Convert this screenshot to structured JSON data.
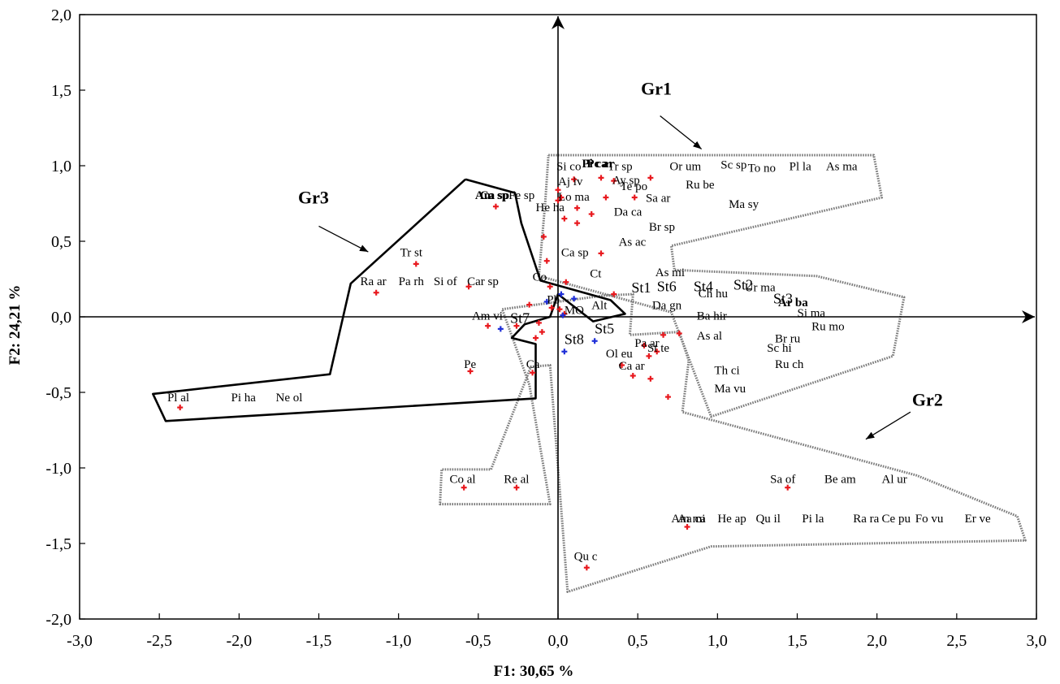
{
  "chart_data": {
    "type": "scatter",
    "xlabel": "F1: 30,65 %",
    "ylabel": "F2: 24,21 %",
    "xlim": [
      -3.0,
      3.0
    ],
    "ylim": [
      -2.0,
      2.0
    ],
    "x_ticks": [
      "-3,0",
      "-2,5",
      "-2,0",
      "-1,5",
      "-1,0",
      "-0,5",
      "0,0",
      "0,5",
      "1,0",
      "1,5",
      "2,0",
      "2,5",
      "3,0"
    ],
    "y_ticks": [
      "2,0",
      "1,5",
      "1,0",
      "0,5",
      "0,0",
      "-0,5",
      "-1,0",
      "-1,5",
      "-2,0"
    ],
    "grid": false,
    "colors": {
      "species_marker": "#e8191e",
      "station_marker": "#1f2fd8",
      "axes": "#000000",
      "group_outline": "#7a7a7a",
      "gr3_outline": "#000000"
    },
    "groups": [
      {
        "name": "Gr1",
        "outline": "dotted-gray",
        "polygon": [
          [
            -0.06,
            1.07
          ],
          [
            1.98,
            1.07
          ],
          [
            2.03,
            0.79
          ],
          [
            0.71,
            0.47
          ],
          [
            0.73,
            0.31
          ],
          [
            1.62,
            0.27
          ],
          [
            2.17,
            0.13
          ],
          [
            2.1,
            -0.26
          ],
          [
            0.96,
            -0.66
          ],
          [
            0.71,
            0.03
          ],
          [
            -0.12,
            0.27
          ],
          [
            -0.08,
            0.76
          ],
          [
            -0.06,
            1.07
          ]
        ]
      },
      {
        "name": "Gr2",
        "outline": "dotted-gray",
        "polygon": [
          [
            -0.35,
            0.05
          ],
          [
            0.28,
            0.14
          ],
          [
            0.47,
            0.15
          ],
          [
            0.45,
            -0.12
          ],
          [
            0.76,
            -0.1
          ],
          [
            0.82,
            -0.29
          ],
          [
            0.78,
            -0.63
          ],
          [
            2.25,
            -1.05
          ],
          [
            2.88,
            -1.32
          ],
          [
            2.93,
            -1.48
          ],
          [
            0.96,
            -1.52
          ],
          [
            0.06,
            -1.82
          ],
          [
            -0.05,
            -0.32
          ],
          [
            -0.17,
            -0.33
          ],
          [
            -0.42,
            -1.01
          ],
          [
            -0.73,
            -1.01
          ],
          [
            -0.74,
            -1.24
          ],
          [
            -0.05,
            -1.24
          ],
          [
            -0.18,
            -0.45
          ],
          [
            -0.35,
            0.05
          ]
        ]
      },
      {
        "name": "Gr3",
        "outline": "solid-black",
        "polygon": [
          [
            -0.58,
            0.91
          ],
          [
            -0.27,
            0.82
          ],
          [
            -0.23,
            0.62
          ],
          [
            -0.11,
            0.24
          ],
          [
            0.33,
            0.11
          ],
          [
            0.42,
            0.02
          ],
          [
            0.22,
            -0.03
          ],
          [
            0.0,
            0.15
          ],
          [
            -0.05,
            0.0
          ],
          [
            -0.21,
            -0.05
          ],
          [
            -0.29,
            -0.14
          ],
          [
            -0.14,
            -0.18
          ],
          [
            -0.14,
            -0.54
          ],
          [
            -2.46,
            -0.69
          ],
          [
            -2.54,
            -0.51
          ],
          [
            -1.43,
            -0.38
          ],
          [
            -1.3,
            0.22
          ],
          [
            -0.58,
            0.91
          ]
        ]
      }
    ],
    "group_arrows": [
      {
        "label": "Gr1",
        "text_at": [
          0.52,
          1.47
        ],
        "arrow": [
          [
            0.64,
            1.33
          ],
          [
            0.9,
            1.11
          ]
        ]
      },
      {
        "label": "Gr3",
        "text_at": [
          -1.63,
          0.75
        ],
        "arrow": [
          [
            -1.5,
            0.6
          ],
          [
            -1.19,
            0.43
          ]
        ]
      },
      {
        "label": "Gr2",
        "text_at": [
          2.22,
          -0.59
        ],
        "arrow": [
          [
            2.21,
            -0.63
          ],
          [
            1.93,
            -0.81
          ]
        ]
      }
    ],
    "species_points": [
      {
        "x": 0.58,
        "y": 0.92
      },
      {
        "x": 0.48,
        "y": 0.79
      },
      {
        "x": 0.27,
        "y": 0.92
      },
      {
        "x": 0.35,
        "y": 0.9
      },
      {
        "x": 0.1,
        "y": 0.91
      },
      {
        "x": 0.0,
        "y": 0.84
      },
      {
        "x": 0.3,
        "y": 0.79
      },
      {
        "x": 0.21,
        "y": 0.68
      },
      {
        "x": 0.02,
        "y": 0.79
      },
      {
        "x": 0.12,
        "y": 0.72
      },
      {
        "x": 0.12,
        "y": 0.62
      },
      {
        "x": 0.04,
        "y": 0.65
      },
      {
        "x": -0.39,
        "y": 0.73
      },
      {
        "x": 0.0,
        "y": 0.77
      },
      {
        "x": -0.09,
        "y": 0.53
      },
      {
        "x": 0.27,
        "y": 0.42
      },
      {
        "x": -0.07,
        "y": 0.37
      },
      {
        "x": -0.89,
        "y": 0.35
      },
      {
        "x": -1.14,
        "y": 0.16
      },
      {
        "x": -0.56,
        "y": 0.2
      },
      {
        "x": 0.05,
        "y": 0.23
      },
      {
        "x": -0.05,
        "y": 0.2
      },
      {
        "x": 0.35,
        "y": 0.15
      },
      {
        "x": -0.18,
        "y": 0.08
      },
      {
        "x": 0.01,
        "y": 0.05
      },
      {
        "x": -0.04,
        "y": 0.06
      },
      {
        "x": 0.04,
        "y": 0.02
      },
      {
        "x": -0.44,
        "y": -0.06
      },
      {
        "x": -0.26,
        "y": -0.06
      },
      {
        "x": -0.12,
        "y": -0.04
      },
      {
        "x": -0.1,
        "y": -0.1
      },
      {
        "x": -0.14,
        "y": -0.14
      },
      {
        "x": -0.55,
        "y": -0.36
      },
      {
        "x": -0.16,
        "y": -0.37
      },
      {
        "x": 0.66,
        "y": -0.12
      },
      {
        "x": 0.76,
        "y": -0.11
      },
      {
        "x": 0.54,
        "y": -0.19
      },
      {
        "x": 0.62,
        "y": -0.23
      },
      {
        "x": 0.57,
        "y": -0.26
      },
      {
        "x": 0.4,
        "y": -0.32
      },
      {
        "x": 0.47,
        "y": -0.39
      },
      {
        "x": 0.58,
        "y": -0.41
      },
      {
        "x": 0.69,
        "y": -0.53
      },
      {
        "x": -2.37,
        "y": -0.6
      },
      {
        "x": -0.59,
        "y": -1.13
      },
      {
        "x": -0.26,
        "y": -1.13
      },
      {
        "x": 1.44,
        "y": -1.13
      },
      {
        "x": 0.81,
        "y": -1.39
      },
      {
        "x": 0.18,
        "y": -1.66
      }
    ],
    "station_points": [
      {
        "x": 0.02,
        "y": 0.15
      },
      {
        "x": -0.07,
        "y": 0.1
      },
      {
        "x": 0.1,
        "y": 0.12
      },
      {
        "x": 0.03,
        "y": 0.01
      },
      {
        "x": -0.36,
        "y": -0.08
      },
      {
        "x": 0.23,
        "y": -0.16
      },
      {
        "x": 0.04,
        "y": -0.23
      }
    ],
    "species_labels": [
      {
        "text": "Si co",
        "x": -0.01,
        "y": 0.97
      },
      {
        "text": "Pi ca",
        "x": 0.15,
        "y": 0.99,
        "bold": true
      },
      {
        "text": "Pc ar",
        "x": 0.18,
        "y": 0.99,
        "bold": true
      },
      {
        "text": "Tr sp",
        "x": 0.31,
        "y": 0.97
      },
      {
        "text": "Or um",
        "x": 0.7,
        "y": 0.97
      },
      {
        "text": "Sc sp",
        "x": 1.02,
        "y": 0.98
      },
      {
        "text": "To no",
        "x": 1.19,
        "y": 0.96
      },
      {
        "text": "Pl la",
        "x": 1.45,
        "y": 0.97
      },
      {
        "text": "As ma",
        "x": 1.68,
        "y": 0.97
      },
      {
        "text": "Aj iv",
        "x": 0.0,
        "y": 0.87
      },
      {
        "text": "Ay sp",
        "x": 0.34,
        "y": 0.88
      },
      {
        "text": "Te po",
        "x": 0.39,
        "y": 0.84
      },
      {
        "text": "Ru be",
        "x": 0.8,
        "y": 0.85
      },
      {
        "text": "Am sp",
        "x": -0.52,
        "y": 0.78,
        "bold": true
      },
      {
        "text": "Ca sp",
        "x": -0.49,
        "y": 0.78,
        "bold": true
      },
      {
        "text": "Fe sp",
        "x": -0.31,
        "y": 0.78
      },
      {
        "text": "Lo ma",
        "x": 0.0,
        "y": 0.77
      },
      {
        "text": "Sa ar",
        "x": 0.55,
        "y": 0.76
      },
      {
        "text": "Ma sy",
        "x": 1.07,
        "y": 0.72
      },
      {
        "text": "He ha",
        "x": -0.14,
        "y": 0.7
      },
      {
        "text": "Da ca",
        "x": 0.35,
        "y": 0.67
      },
      {
        "text": "Br sp",
        "x": 0.57,
        "y": 0.57
      },
      {
        "text": "As ac",
        "x": 0.38,
        "y": 0.47
      },
      {
        "text": "Ca sp",
        "x": 0.02,
        "y": 0.4
      },
      {
        "text": "Tr st",
        "x": -0.99,
        "y": 0.4
      },
      {
        "text": "As mi",
        "x": 0.61,
        "y": 0.27
      },
      {
        "text": "Ct",
        "x": 0.2,
        "y": 0.26
      },
      {
        "text": "Co",
        "x": -0.16,
        "y": 0.24
      },
      {
        "text": "Ra ar",
        "x": -1.24,
        "y": 0.21
      },
      {
        "text": "Pa rh",
        "x": -1.0,
        "y": 0.21
      },
      {
        "text": "Si of",
        "x": -0.78,
        "y": 0.21
      },
      {
        "text": "Car sp",
        "x": -0.57,
        "y": 0.21
      },
      {
        "text": "Ch hu",
        "x": 0.88,
        "y": 0.13
      },
      {
        "text": "Ur ma",
        "x": 1.17,
        "y": 0.17
      },
      {
        "text": "Ar ba",
        "x": 1.38,
        "y": 0.07,
        "bold": true
      },
      {
        "text": "Si ma",
        "x": 1.5,
        "y": 0.0
      },
      {
        "text": "Da gn",
        "x": 0.59,
        "y": 0.05
      },
      {
        "text": "Pb",
        "x": -0.07,
        "y": 0.09
      },
      {
        "text": "Alt",
        "x": 0.21,
        "y": 0.05
      },
      {
        "text": "MO",
        "x": 0.04,
        "y": 0.02
      },
      {
        "text": "Ba hir",
        "x": 0.87,
        "y": -0.02
      },
      {
        "text": "Am vi",
        "x": -0.54,
        "y": -0.02
      },
      {
        "text": "Ru mo",
        "x": 1.59,
        "y": -0.09
      },
      {
        "text": "As al",
        "x": 0.87,
        "y": -0.15
      },
      {
        "text": "Sc hi",
        "x": 1.31,
        "y": -0.23
      },
      {
        "text": "St te",
        "x": 0.56,
        "y": -0.23
      },
      {
        "text": "Pa ar",
        "x": 0.48,
        "y": -0.2
      },
      {
        "text": "Br ru",
        "x": 1.36,
        "y": -0.17
      },
      {
        "text": "Ol eu",
        "x": 0.3,
        "y": -0.27
      },
      {
        "text": "Ca ar",
        "x": 0.38,
        "y": -0.35
      },
      {
        "text": "Ru ch",
        "x": 1.36,
        "y": -0.34
      },
      {
        "text": "Th ci",
        "x": 0.98,
        "y": -0.38
      },
      {
        "text": "Pe",
        "x": -0.59,
        "y": -0.34
      },
      {
        "text": "Ca",
        "x": -0.2,
        "y": -0.34
      },
      {
        "text": "Ma vu",
        "x": 0.98,
        "y": -0.5
      },
      {
        "text": "Pl al",
        "x": -2.45,
        "y": -0.56
      },
      {
        "text": "Pi ha",
        "x": -2.05,
        "y": -0.56
      },
      {
        "text": "Ne ol",
        "x": -1.77,
        "y": -0.56
      },
      {
        "text": "Sa of",
        "x": 1.33,
        "y": -1.1
      },
      {
        "text": "Be am",
        "x": 1.67,
        "y": -1.1
      },
      {
        "text": "Al ur",
        "x": 2.03,
        "y": -1.1
      },
      {
        "text": "Co al",
        "x": -0.68,
        "y": -1.1
      },
      {
        "text": "Re al",
        "x": -0.34,
        "y": -1.1
      },
      {
        "text": "Am mi",
        "x": 0.71,
        "y": -1.36
      },
      {
        "text": "Aa ca",
        "x": 0.75,
        "y": -1.36
      },
      {
        "text": "He ap",
        "x": 1.0,
        "y": -1.36
      },
      {
        "text": "Qu il",
        "x": 1.24,
        "y": -1.36
      },
      {
        "text": "Pi la",
        "x": 1.53,
        "y": -1.36
      },
      {
        "text": "Ra ra",
        "x": 1.85,
        "y": -1.36
      },
      {
        "text": "Ce pu",
        "x": 2.03,
        "y": -1.36
      },
      {
        "text": "Fo vu",
        "x": 2.24,
        "y": -1.36
      },
      {
        "text": "Er ve",
        "x": 2.55,
        "y": -1.36
      },
      {
        "text": "Qu c",
        "x": 0.1,
        "y": -1.61
      }
    ],
    "station_labels": [
      {
        "text": "St1",
        "x": 0.46,
        "y": 0.16
      },
      {
        "text": "St6",
        "x": 0.62,
        "y": 0.17
      },
      {
        "text": "St4",
        "x": 0.85,
        "y": 0.17
      },
      {
        "text": "St2",
        "x": 1.1,
        "y": 0.18
      },
      {
        "text": "St3",
        "x": 1.35,
        "y": 0.09
      },
      {
        "text": "St7",
        "x": -0.3,
        "y": -0.04
      },
      {
        "text": "St5",
        "x": 0.23,
        "y": -0.11
      },
      {
        "text": "St8",
        "x": 0.04,
        "y": -0.18
      }
    ]
  }
}
